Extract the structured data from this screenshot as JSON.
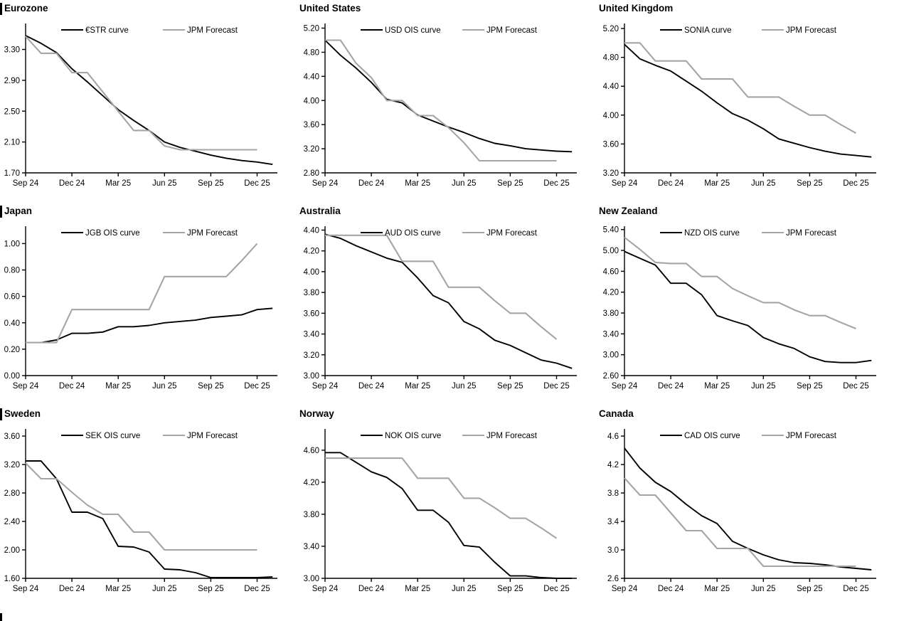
{
  "colors": {
    "curve": "#000000",
    "forecast": "#a5a5a5",
    "axis": "#000000",
    "text": "#000000",
    "section_bar": "#000000"
  },
  "x_axis": {
    "categories": [
      "Sep 24",
      "Oct 24",
      "Nov 24",
      "Dec 24",
      "Jan 25",
      "Feb 25",
      "Mar 25",
      "Apr 25",
      "May 25",
      "Jun 25",
      "Jul 25",
      "Aug 25",
      "Sep 25",
      "Oct 25",
      "Nov 25",
      "Dec 25",
      "Jan 26"
    ],
    "tick_positions": [
      0,
      3,
      6,
      9,
      12,
      15
    ],
    "tick_labels": [
      "Sep 24",
      "Dec 24",
      "Mar 25",
      "Jun 25",
      "Sep 25",
      "Dec 25"
    ]
  },
  "chart_data": [
    {
      "type": "line",
      "title": "Eurozone",
      "section_start": true,
      "ylim": [
        1.7,
        3.6
      ],
      "y_ticks": [
        "1.70",
        "2.10",
        "2.50",
        "2.90",
        "3.30"
      ],
      "legend_position": "top-center-inside",
      "grid": false,
      "series": [
        {
          "name": "€STR curve",
          "role": "curve",
          "values": [
            3.48,
            3.38,
            3.26,
            3.05,
            2.88,
            2.7,
            2.52,
            2.38,
            2.25,
            2.1,
            2.03,
            1.98,
            1.93,
            1.89,
            1.86,
            1.84,
            1.81
          ]
        },
        {
          "name": "JPM Forecast",
          "role": "forecast",
          "values": [
            3.47,
            3.25,
            3.25,
            3.0,
            3.0,
            2.75,
            2.5,
            2.25,
            2.25,
            2.05,
            2.0,
            2.0,
            2.0,
            2.0,
            2.0,
            2.0
          ]
        }
      ]
    },
    {
      "type": "line",
      "title": "United States",
      "section_start": false,
      "ylim": [
        2.8,
        5.23
      ],
      "y_ticks": [
        "2.80",
        "3.20",
        "3.60",
        "4.00",
        "4.40",
        "4.80",
        "5.20"
      ],
      "legend_position": "top-center-inside",
      "grid": false,
      "series": [
        {
          "name": "USD OIS curve",
          "role": "curve",
          "values": [
            5.0,
            4.75,
            4.54,
            4.3,
            4.02,
            3.96,
            3.76,
            3.66,
            3.56,
            3.47,
            3.37,
            3.29,
            3.25,
            3.2,
            3.18,
            3.16,
            3.15
          ]
        },
        {
          "name": "JPM Forecast",
          "role": "forecast",
          "values": [
            5.0,
            5.0,
            4.62,
            4.38,
            4.0,
            4.0,
            3.75,
            3.75,
            3.55,
            3.3,
            3.0,
            3.0,
            3.0,
            3.0,
            3.0,
            3.0
          ]
        }
      ]
    },
    {
      "type": "line",
      "title": "United Kingdom",
      "section_start": false,
      "ylim": [
        3.2,
        5.23
      ],
      "y_ticks": [
        "3.20",
        "3.60",
        "4.00",
        "4.40",
        "4.80",
        "5.20"
      ],
      "legend_position": "top-center-inside",
      "grid": false,
      "series": [
        {
          "name": "SONIA curve",
          "role": "curve",
          "values": [
            4.98,
            4.78,
            4.69,
            4.61,
            4.47,
            4.33,
            4.17,
            4.02,
            3.93,
            3.81,
            3.67,
            3.61,
            3.55,
            3.5,
            3.46,
            3.44,
            3.42
          ]
        },
        {
          "name": "JPM Forecast",
          "role": "forecast",
          "values": [
            5.0,
            5.0,
            4.75,
            4.75,
            4.75,
            4.5,
            4.5,
            4.5,
            4.25,
            4.25,
            4.25,
            4.12,
            4.0,
            4.0,
            3.87,
            3.75
          ]
        }
      ]
    },
    {
      "type": "line",
      "title": "Japan",
      "section_start": true,
      "ylim": [
        0.0,
        1.11
      ],
      "y_ticks": [
        "0.00",
        "0.20",
        "0.40",
        "0.60",
        "0.80",
        "1.00"
      ],
      "legend_position": "top-center-inside",
      "grid": false,
      "series": [
        {
          "name": "JGB OIS curve",
          "role": "curve",
          "values": [
            0.25,
            0.25,
            0.27,
            0.32,
            0.32,
            0.33,
            0.37,
            0.37,
            0.38,
            0.4,
            0.41,
            0.42,
            0.44,
            0.45,
            0.46,
            0.5,
            0.51
          ]
        },
        {
          "name": "JPM Forecast",
          "role": "forecast",
          "values": [
            0.25,
            0.25,
            0.25,
            0.5,
            0.5,
            0.5,
            0.5,
            0.5,
            0.5,
            0.75,
            0.75,
            0.75,
            0.75,
            0.75,
            0.87,
            1.0
          ]
        }
      ]
    },
    {
      "type": "line",
      "title": "Australia",
      "section_start": false,
      "ylim": [
        3.0,
        4.41
      ],
      "y_ticks": [
        "3.00",
        "3.20",
        "3.40",
        "3.60",
        "3.80",
        "4.00",
        "4.20",
        "4.40"
      ],
      "legend_position": "top-center-inside",
      "grid": false,
      "series": [
        {
          "name": "AUD OIS curve",
          "role": "curve",
          "values": [
            4.36,
            4.32,
            4.25,
            4.19,
            4.13,
            4.09,
            3.94,
            3.77,
            3.7,
            3.52,
            3.45,
            3.34,
            3.29,
            3.22,
            3.15,
            3.12,
            3.07
          ]
        },
        {
          "name": "JPM Forecast",
          "role": "forecast",
          "values": [
            4.35,
            4.35,
            4.35,
            4.35,
            4.35,
            4.1,
            4.1,
            4.1,
            3.85,
            3.85,
            3.85,
            3.72,
            3.6,
            3.6,
            3.47,
            3.35
          ]
        }
      ]
    },
    {
      "type": "line",
      "title": "New Zealand",
      "section_start": false,
      "ylim": [
        2.6,
        5.41
      ],
      "y_ticks": [
        "2.60",
        "3.00",
        "3.40",
        "3.80",
        "4.20",
        "4.60",
        "5.00",
        "5.40"
      ],
      "legend_position": "top-center-inside",
      "grid": false,
      "series": [
        {
          "name": "NZD OIS curve",
          "role": "curve",
          "values": [
            4.98,
            4.85,
            4.72,
            4.37,
            4.37,
            4.15,
            3.75,
            3.65,
            3.56,
            3.33,
            3.21,
            3.12,
            2.96,
            2.87,
            2.85,
            2.85,
            2.89
          ]
        },
        {
          "name": "JPM Forecast",
          "role": "forecast",
          "values": [
            5.25,
            5.02,
            4.77,
            4.75,
            4.75,
            4.5,
            4.5,
            4.27,
            4.13,
            4.0,
            4.0,
            3.86,
            3.75,
            3.75,
            3.62,
            3.5
          ]
        }
      ]
    },
    {
      "type": "line",
      "title": "Sweden",
      "section_start": true,
      "ylim": [
        1.6,
        3.66
      ],
      "y_ticks": [
        "1.60",
        "2.00",
        "2.40",
        "2.80",
        "3.20",
        "3.60"
      ],
      "legend_position": "top-center-inside",
      "grid": false,
      "series": [
        {
          "name": "SEK OIS curve",
          "role": "curve",
          "values": [
            3.25,
            3.25,
            3.0,
            2.53,
            2.53,
            2.44,
            2.05,
            2.04,
            1.97,
            1.73,
            1.72,
            1.68,
            1.61,
            1.61,
            1.61,
            1.61,
            1.62
          ]
        },
        {
          "name": "JPM Forecast",
          "role": "forecast",
          "values": [
            3.22,
            3.0,
            3.0,
            2.81,
            2.63,
            2.5,
            2.5,
            2.25,
            2.25,
            2.0,
            2.0,
            2.0,
            2.0,
            2.0,
            2.0,
            2.0
          ]
        }
      ]
    },
    {
      "type": "line",
      "title": "Norway",
      "section_start": false,
      "ylim": [
        3.0,
        4.83
      ],
      "y_ticks": [
        "3.00",
        "3.40",
        "3.80",
        "4.20",
        "4.60"
      ],
      "legend_position": "top-center-inside",
      "grid": false,
      "series": [
        {
          "name": "NOK OIS curve",
          "role": "curve",
          "values": [
            4.57,
            4.57,
            4.45,
            4.33,
            4.26,
            4.12,
            3.85,
            3.85,
            3.7,
            3.41,
            3.39,
            3.2,
            3.03,
            3.03,
            3.01,
            3.0,
            3.0
          ]
        },
        {
          "name": "JPM Forecast",
          "role": "forecast",
          "values": [
            4.5,
            4.5,
            4.5,
            4.5,
            4.5,
            4.5,
            4.25,
            4.25,
            4.25,
            4.0,
            4.0,
            3.88,
            3.75,
            3.75,
            3.63,
            3.5
          ]
        }
      ]
    },
    {
      "type": "line",
      "title": "Canada",
      "section_start": false,
      "ylim": [
        2.6,
        4.66
      ],
      "y_ticks": [
        "2.6",
        "3.0",
        "3.4",
        "3.8",
        "4.2",
        "4.6"
      ],
      "legend_position": "top-center-inside",
      "grid": false,
      "series": [
        {
          "name": "CAD OIS curve",
          "role": "curve",
          "values": [
            4.43,
            4.15,
            3.95,
            3.82,
            3.64,
            3.48,
            3.37,
            3.12,
            3.02,
            2.93,
            2.86,
            2.82,
            2.81,
            2.79,
            2.76,
            2.74,
            2.72
          ]
        },
        {
          "name": "JPM Forecast",
          "role": "forecast",
          "values": [
            4.01,
            3.77,
            3.77,
            3.52,
            3.27,
            3.27,
            3.02,
            3.02,
            3.02,
            2.77,
            2.77,
            2.77,
            2.77,
            2.77,
            2.77,
            2.77
          ]
        }
      ]
    }
  ]
}
